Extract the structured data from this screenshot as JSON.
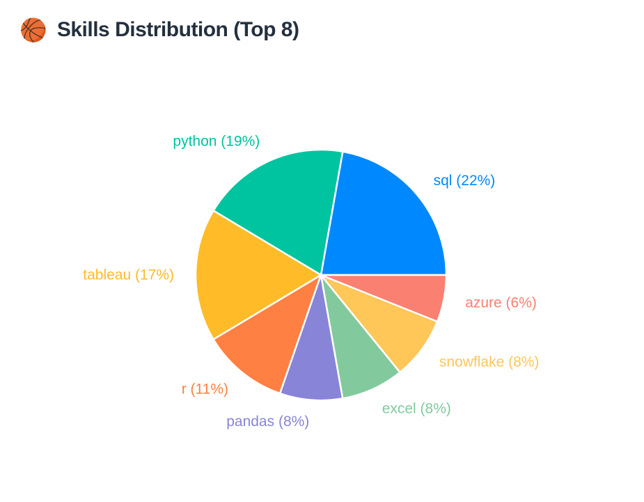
{
  "header": {
    "icon": "🏀",
    "title": "Skills Distribution (Top 8)",
    "title_color": "#24303E"
  },
  "chart_data": {
    "type": "pie",
    "title": "Skills Distribution (Top 8)",
    "unit": "%",
    "start_angle_deg": 0,
    "direction": "counterclockwise",
    "slice_border_color": "#ffffff",
    "slices": [
      {
        "name": "sql",
        "value": 22,
        "label": "sql (22%)",
        "color": "#0088FE"
      },
      {
        "name": "python",
        "value": 19,
        "label": "python (19%)",
        "color": "#00C49F"
      },
      {
        "name": "tableau",
        "value": 17,
        "label": "tableau (17%)",
        "color": "#FFBB28"
      },
      {
        "name": "r",
        "value": 11,
        "label": "r (11%)",
        "color": "#FF8042"
      },
      {
        "name": "pandas",
        "value": 8,
        "label": "pandas (8%)",
        "color": "#8884D8"
      },
      {
        "name": "excel",
        "value": 8,
        "label": "excel (8%)",
        "color": "#82CA9D"
      },
      {
        "name": "snowflake",
        "value": 8,
        "label": "snowflake (8%)",
        "color": "#FFC658"
      },
      {
        "name": "azure",
        "value": 6,
        "label": "azure (6%)",
        "color": "#FA8072"
      }
    ]
  }
}
